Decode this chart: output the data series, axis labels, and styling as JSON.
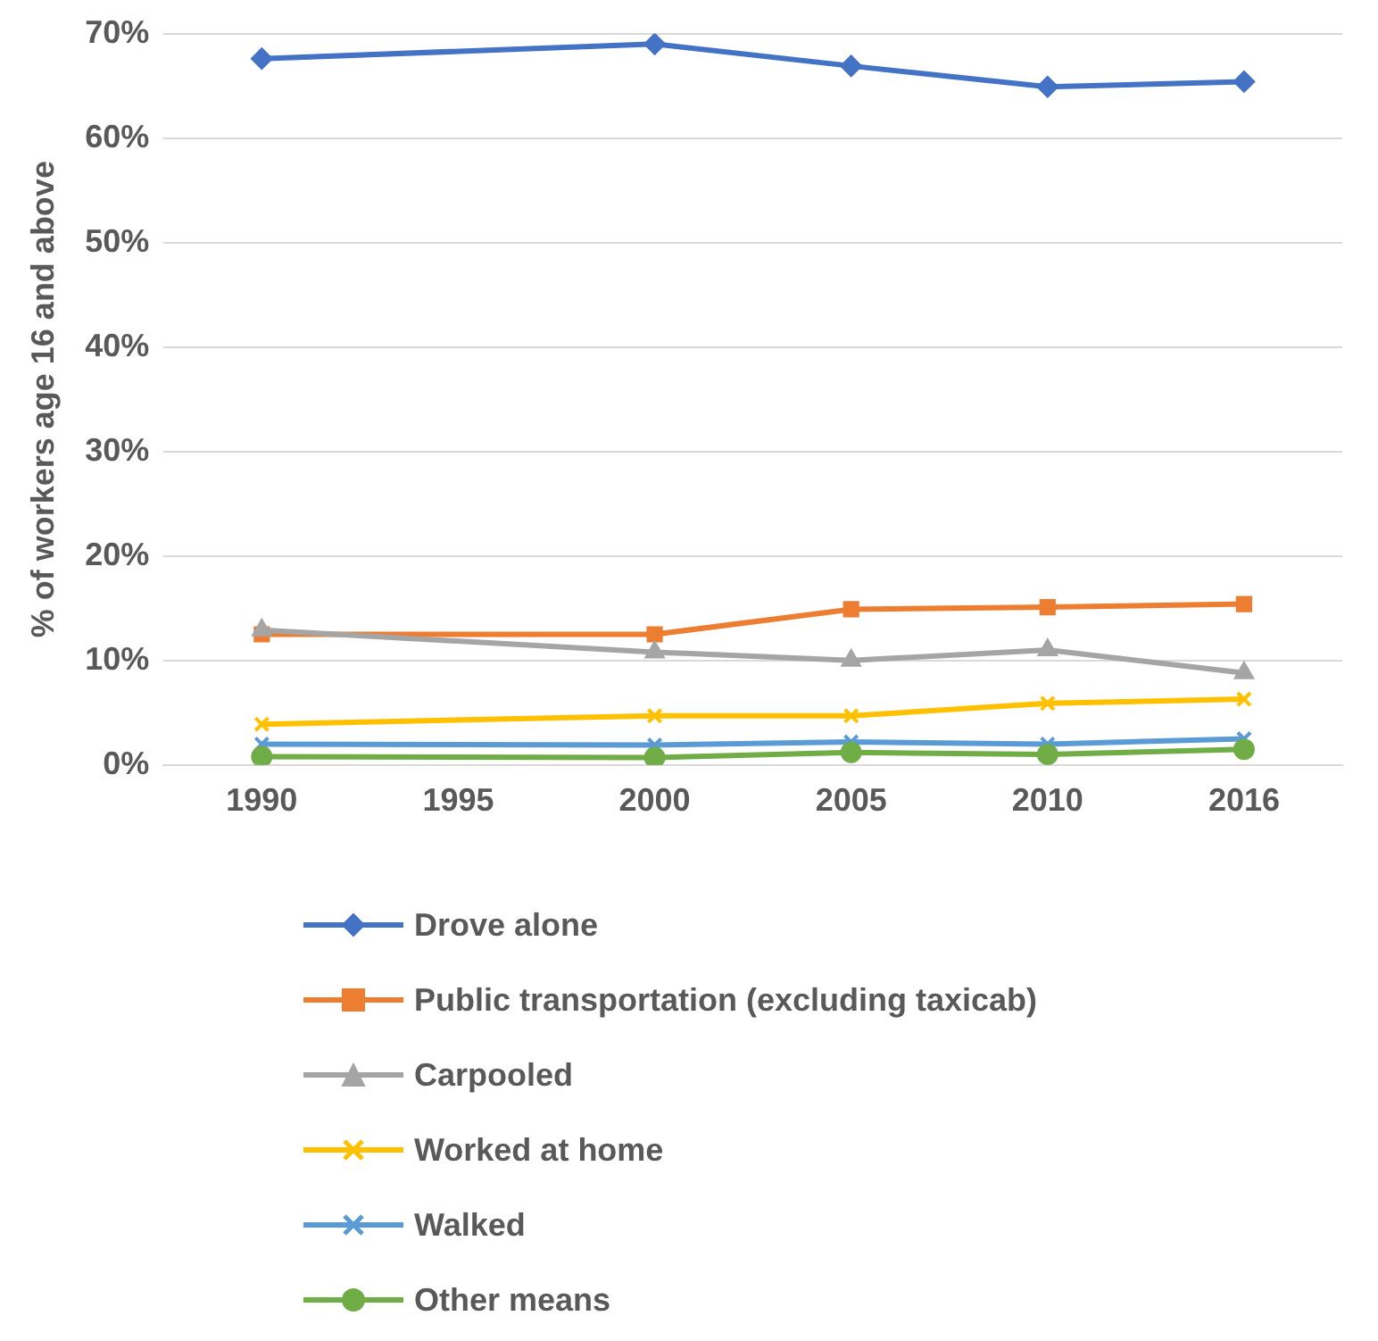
{
  "chart_data": {
    "type": "line",
    "ylabel": "% of workers age 16 and above",
    "categories": [
      "1990",
      "1995",
      "2000",
      "2005",
      "2010",
      "2016"
    ],
    "ylim": [
      0,
      70
    ],
    "yticks": [
      {
        "value": 0,
        "label": "0%"
      },
      {
        "value": 10,
        "label": "10%"
      },
      {
        "value": 20,
        "label": "20%"
      },
      {
        "value": 30,
        "label": "30%"
      },
      {
        "value": 40,
        "label": "40%"
      },
      {
        "value": 50,
        "label": "50%"
      },
      {
        "value": 60,
        "label": "60%"
      },
      {
        "value": 70,
        "label": "70%"
      }
    ],
    "grid": "y",
    "legend": "bottom",
    "line_style": "solid",
    "series": [
      {
        "name": "Drove alone",
        "color": "#4472c4",
        "marker": "diamond",
        "values": [
          67.6,
          null,
          69.0,
          66.9,
          64.9,
          65.4
        ]
      },
      {
        "name": "Public transportation (excluding taxicab)",
        "color": "#ed7d31",
        "marker": "square",
        "values": [
          12.5,
          null,
          12.5,
          14.9,
          15.1,
          15.4
        ]
      },
      {
        "name": "Carpooled",
        "color": "#a5a5a5",
        "marker": "triangle",
        "values": [
          12.9,
          null,
          10.8,
          10.0,
          11.0,
          8.8
        ]
      },
      {
        "name": "Worked at home",
        "color": "#ffc000",
        "marker": "cross",
        "values": [
          3.9,
          null,
          4.7,
          4.7,
          5.9,
          6.3
        ]
      },
      {
        "name": "Walked",
        "color": "#5b9bd5",
        "marker": "cross",
        "values": [
          2.0,
          null,
          1.9,
          2.2,
          2.0,
          2.5
        ]
      },
      {
        "name": "Other means",
        "color": "#70ad47",
        "marker": "circle",
        "values": [
          0.8,
          null,
          0.7,
          1.2,
          1.0,
          1.5
        ]
      }
    ]
  }
}
